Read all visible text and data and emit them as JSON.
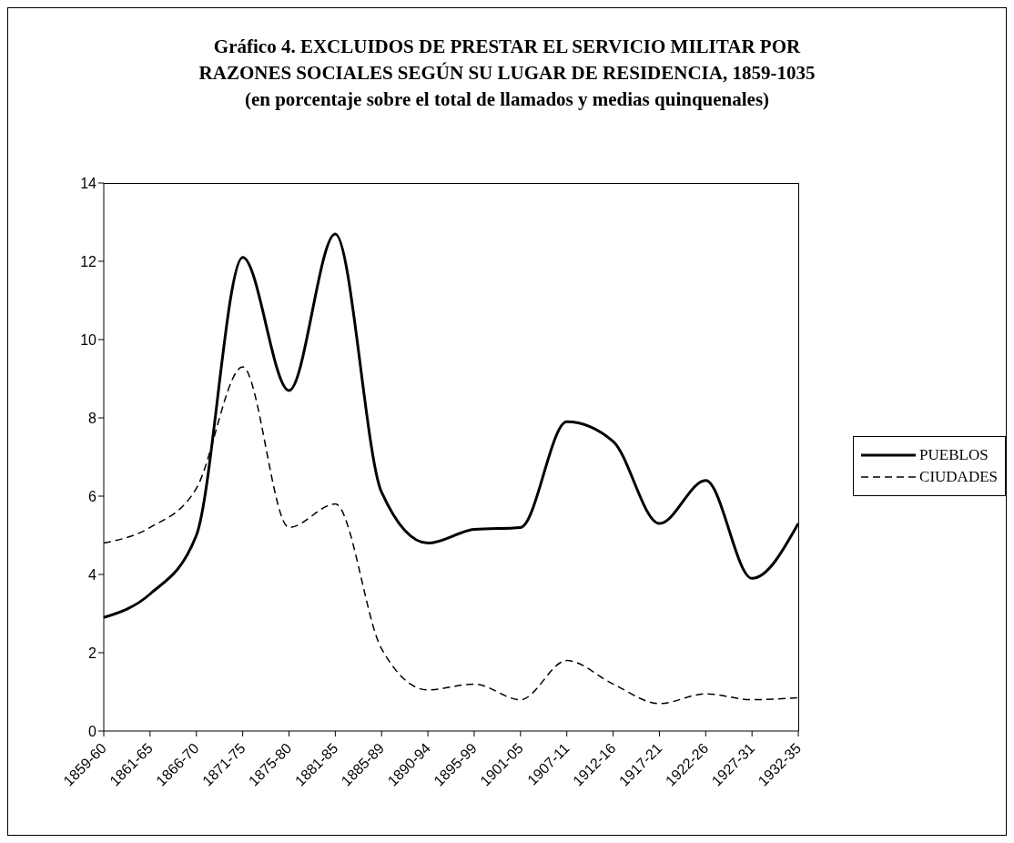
{
  "chart_data": {
    "type": "line",
    "title": "Gráfico 4. EXCLUIDOS DE PRESTAR EL SERVICIO MILITAR POR RAZONES SOCIALES SEGÚN SU LUGAR DE RESIDENCIA, 1859-1035",
    "subtitle": "(en porcentaje sobre el total de llamados y medias quinquenales)",
    "categories": [
      "1859-60",
      "1861-65",
      "1866-70",
      "1871-75",
      "1875-80",
      "1881-85",
      "1885-89",
      "1890-94",
      "1895-99",
      "1901-05",
      "1907-11",
      "1912-16",
      "1917-21",
      "1922-26",
      "1927-31",
      "1932-35"
    ],
    "series": [
      {
        "name": "PUEBLOS",
        "color": "#000000",
        "line_style": "solid",
        "values": [
          2.9,
          3.5,
          5.0,
          12.1,
          8.7,
          12.7,
          6.1,
          4.8,
          5.15,
          5.2,
          7.9,
          7.4,
          5.3,
          6.4,
          3.9,
          5.3
        ]
      },
      {
        "name": "CIUDADES",
        "color": "#000000",
        "line_style": "dashed",
        "values": [
          4.8,
          5.2,
          6.2,
          9.3,
          5.2,
          5.8,
          2.1,
          1.05,
          1.2,
          0.8,
          1.8,
          1.2,
          0.7,
          0.95,
          0.8,
          0.85
        ]
      }
    ],
    "ylim": [
      0,
      14
    ],
    "yticks": [
      0,
      2,
      4,
      6,
      8,
      10,
      12,
      14
    ],
    "grid": false,
    "legend": "right",
    "marker": "none"
  }
}
